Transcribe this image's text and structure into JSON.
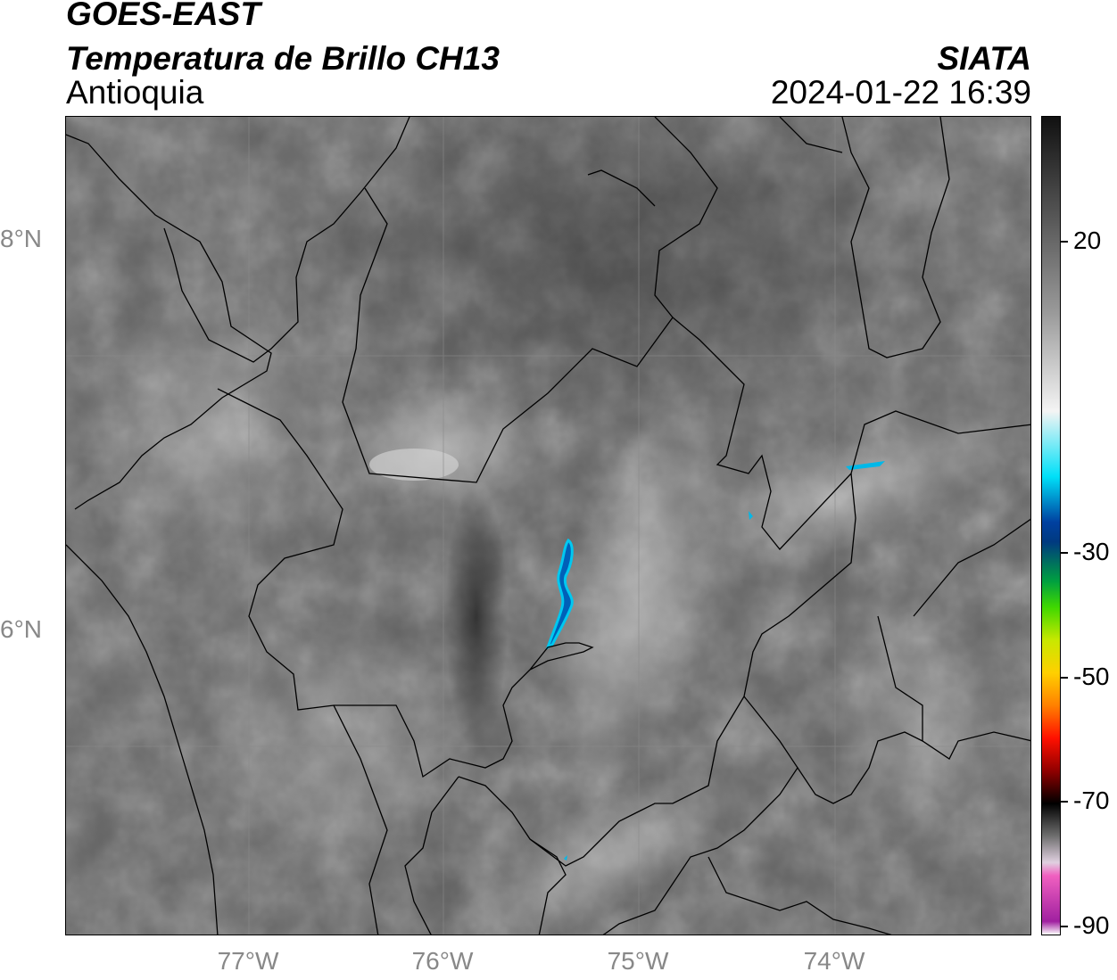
{
  "header": {
    "title_line1": "GOES-EAST",
    "title_line2": "Temperatura de Brillo CH13",
    "region": "Antioquia",
    "org": "SIATA",
    "datetime": "2024-01-22 16:39"
  },
  "map": {
    "lat_labels": [
      "8°N",
      "6°N"
    ],
    "lon_labels": [
      "77°W",
      "76°W",
      "75°W",
      "74°W"
    ],
    "background_gray": "#606060"
  },
  "colorbar": {
    "labels": [
      "20",
      "-30",
      "-50",
      "-70",
      "-90"
    ],
    "stops": [
      {
        "v": 35,
        "c": "#111111"
      },
      {
        "v": 20,
        "c": "#555555"
      },
      {
        "v": 5,
        "c": "#9a9a9a"
      },
      {
        "v": -10,
        "c": "#f4f4f4"
      },
      {
        "v": -20,
        "c": "#00e0f8"
      },
      {
        "v": -27,
        "c": "#0040a0"
      },
      {
        "v": -30,
        "c": "#003a80"
      },
      {
        "v": -36,
        "c": "#00a040"
      },
      {
        "v": -40,
        "c": "#40d800"
      },
      {
        "v": -45,
        "c": "#c8e800"
      },
      {
        "v": -50,
        "c": "#ffd000"
      },
      {
        "v": -55,
        "c": "#ff8000"
      },
      {
        "v": -60,
        "c": "#ff1000"
      },
      {
        "v": -65,
        "c": "#900000"
      },
      {
        "v": -70,
        "c": "#000000"
      },
      {
        "v": -75,
        "c": "#707070"
      },
      {
        "v": -79,
        "c": "#e0d0e0"
      },
      {
        "v": -81,
        "c": "#f060c0"
      },
      {
        "v": -88,
        "c": "#a020a0"
      },
      {
        "v": -90,
        "c": "#ffffff"
      }
    ]
  }
}
